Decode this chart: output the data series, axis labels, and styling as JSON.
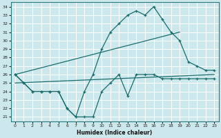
{
  "xlabel": "Humidex (Indice chaleur)",
  "bg_color": "#cce8ec",
  "grid_color": "#aacccc",
  "line_color": "#1a6b6b",
  "xlim": [
    -0.5,
    23.5
  ],
  "ylim": [
    20.5,
    34.5
  ],
  "xticks": [
    0,
    1,
    2,
    3,
    4,
    5,
    6,
    7,
    8,
    9,
    10,
    11,
    12,
    13,
    14,
    15,
    16,
    17,
    18,
    19,
    20,
    21,
    22,
    23
  ],
  "yticks": [
    21,
    22,
    23,
    24,
    25,
    26,
    27,
    28,
    29,
    30,
    31,
    32,
    33,
    34
  ],
  "line1_x": [
    0,
    1,
    2,
    3,
    4,
    5,
    6,
    7,
    8,
    9,
    10,
    11,
    12,
    13,
    14,
    15,
    16,
    17,
    18,
    19,
    20,
    21,
    22,
    23
  ],
  "line1_y": [
    26,
    25,
    24,
    24,
    24,
    24,
    22,
    21,
    24,
    26,
    29,
    31,
    32,
    33,
    33.5,
    33,
    34,
    32.5,
    31,
    30,
    27.5,
    27,
    26.5,
    26.5
  ],
  "line2_x": [
    0,
    1,
    2,
    3,
    4,
    5,
    6,
    7,
    8,
    9,
    10,
    11,
    12,
    13,
    14,
    15,
    16,
    17,
    18,
    19,
    20,
    21,
    22,
    23
  ],
  "line2_y": [
    26,
    25,
    24,
    24,
    24,
    24,
    22,
    21,
    21,
    21,
    24,
    25,
    26,
    23.5,
    26,
    26,
    26,
    25.5,
    25.5,
    25.5,
    25.5,
    25.5,
    25.5,
    25.5
  ],
  "line3_x": [
    0,
    19
  ],
  "line3_y": [
    26,
    31
  ],
  "line4_x": [
    0,
    23
  ],
  "line4_y": [
    25,
    26
  ]
}
